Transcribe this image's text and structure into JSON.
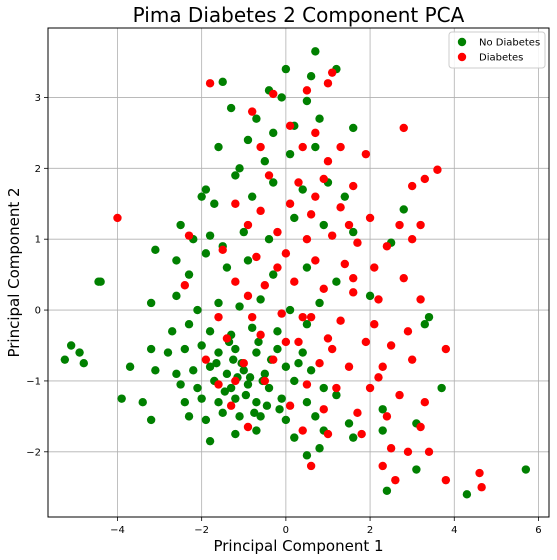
{
  "chart_data": {
    "type": "scatter",
    "title": "Pima Diabetes 2 Component PCA",
    "xlabel": "Principal Component 1",
    "ylabel": "Principal Component 2",
    "xlim": [
      -5.65,
      6.25
    ],
    "ylim": [
      -2.92,
      3.98
    ],
    "xticks": [
      -4,
      -2,
      0,
      2,
      4,
      6
    ],
    "yticks": [
      -2,
      -1,
      0,
      1,
      2,
      3
    ],
    "xtick_labels": [
      "−4",
      "−2",
      "0",
      "2",
      "4",
      "6"
    ],
    "ytick_labels": [
      "−2",
      "−1",
      "0",
      "1",
      "2",
      "3"
    ],
    "grid": true,
    "legend_position": "top-right",
    "series": [
      {
        "name": "No Diabetes",
        "color": "#008000",
        "points": [
          [
            0.7,
            3.65
          ],
          [
            -1.5,
            3.22
          ],
          [
            0.0,
            3.4
          ],
          [
            0.6,
            3.3
          ],
          [
            1.2,
            3.4
          ],
          [
            -0.4,
            3.1
          ],
          [
            -0.1,
            3.0
          ],
          [
            -1.3,
            2.85
          ],
          [
            0.5,
            2.95
          ],
          [
            -0.7,
            2.7
          ],
          [
            -0.9,
            2.4
          ],
          [
            -0.3,
            2.5
          ],
          [
            0.2,
            2.6
          ],
          [
            0.8,
            2.7
          ],
          [
            -1.6,
            2.3
          ],
          [
            -1.1,
            2.0
          ],
          [
            -0.5,
            2.1
          ],
          [
            0.1,
            2.2
          ],
          [
            0.7,
            2.3
          ],
          [
            1.6,
            2.57
          ],
          [
            -1.9,
            1.7
          ],
          [
            -2.0,
            1.6
          ],
          [
            -1.7,
            1.5
          ],
          [
            -1.2,
            1.9
          ],
          [
            -0.8,
            1.6
          ],
          [
            -0.3,
            1.8
          ],
          [
            0.4,
            1.7
          ],
          [
            1.0,
            1.8
          ],
          [
            1.4,
            1.6
          ],
          [
            2.8,
            1.42
          ],
          [
            -2.5,
            1.2
          ],
          [
            -2.2,
            1.0
          ],
          [
            -1.8,
            1.05
          ],
          [
            -1.5,
            0.9
          ],
          [
            -1.0,
            1.1
          ],
          [
            -0.4,
            1.0
          ],
          [
            0.2,
            1.3
          ],
          [
            0.9,
            1.2
          ],
          [
            1.6,
            1.1
          ],
          [
            2.5,
            0.95
          ],
          [
            -3.1,
            0.85
          ],
          [
            -2.6,
            0.7
          ],
          [
            -2.3,
            0.5
          ],
          [
            -1.9,
            0.8
          ],
          [
            -1.4,
            0.6
          ],
          [
            -0.9,
            0.7
          ],
          [
            -0.3,
            0.5
          ],
          [
            0.5,
            0.6
          ],
          [
            1.2,
            0.4
          ],
          [
            2.0,
            0.2
          ],
          [
            -4.4,
            0.4
          ],
          [
            -4.45,
            0.4
          ],
          [
            -3.2,
            0.1
          ],
          [
            -2.6,
            0.2
          ],
          [
            -2.1,
            0.0
          ],
          [
            -1.6,
            0.1
          ],
          [
            -1.1,
            0.05
          ],
          [
            -0.6,
            0.15
          ],
          [
            0.1,
            0.0
          ],
          [
            0.8,
            0.1
          ],
          [
            -2.7,
            -0.3
          ],
          [
            -2.3,
            -0.2
          ],
          [
            -1.8,
            -0.3
          ],
          [
            -1.3,
            -0.35
          ],
          [
            -0.8,
            -0.25
          ],
          [
            -0.2,
            -0.3
          ],
          [
            0.5,
            -0.2
          ],
          [
            3.4,
            -0.1
          ],
          [
            3.3,
            -0.2
          ],
          [
            -5.1,
            -0.5
          ],
          [
            -4.9,
            -0.6
          ],
          [
            -4.8,
            -0.75
          ],
          [
            -5.25,
            -0.7
          ],
          [
            -3.2,
            -0.55
          ],
          [
            -2.8,
            -0.6
          ],
          [
            -2.4,
            -0.55
          ],
          [
            -2.0,
            -0.5
          ],
          [
            -1.6,
            -0.6
          ],
          [
            -1.2,
            -0.55
          ],
          [
            -0.7,
            -0.6
          ],
          [
            -0.2,
            -0.55
          ],
          [
            0.4,
            -0.6
          ],
          [
            -3.7,
            -0.8
          ],
          [
            -3.1,
            -0.85
          ],
          [
            -2.6,
            -0.9
          ],
          [
            -2.2,
            -0.85
          ],
          [
            -1.8,
            -0.8
          ],
          [
            -1.4,
            -0.9
          ],
          [
            -1.0,
            -0.85
          ],
          [
            -0.5,
            -0.9
          ],
          [
            0.0,
            -0.8
          ],
          [
            0.6,
            -0.85
          ],
          [
            -2.5,
            -1.05
          ],
          [
            -2.1,
            -1.1
          ],
          [
            -1.7,
            -1.0
          ],
          [
            -1.3,
            -1.1
          ],
          [
            -0.9,
            -1.05
          ],
          [
            -0.4,
            -1.1
          ],
          [
            0.2,
            -1.0
          ],
          [
            0.9,
            -1.1
          ],
          [
            3.7,
            -1.1
          ],
          [
            -3.9,
            -1.25
          ],
          [
            -3.4,
            -1.3
          ],
          [
            -2.4,
            -1.3
          ],
          [
            -2.0,
            -1.25
          ],
          [
            -1.6,
            -1.3
          ],
          [
            -1.2,
            -1.25
          ],
          [
            -0.7,
            -1.3
          ],
          [
            -0.1,
            -1.25
          ],
          [
            0.5,
            -1.3
          ],
          [
            1.2,
            -1.2
          ],
          [
            2.3,
            -1.4
          ],
          [
            -3.2,
            -1.55
          ],
          [
            -2.3,
            -1.5
          ],
          [
            -1.9,
            -1.55
          ],
          [
            -1.5,
            -1.45
          ],
          [
            -1.1,
            -1.5
          ],
          [
            -0.6,
            -1.5
          ],
          [
            0.0,
            -1.55
          ],
          [
            0.7,
            -1.5
          ],
          [
            1.5,
            -1.6
          ],
          [
            3.1,
            -1.6
          ],
          [
            -1.8,
            -1.85
          ],
          [
            -1.2,
            -1.75
          ],
          [
            -0.7,
            -1.7
          ],
          [
            0.2,
            -1.8
          ],
          [
            0.9,
            -1.7
          ],
          [
            1.6,
            -1.8
          ],
          [
            2.3,
            -1.7
          ],
          [
            3.1,
            -2.25
          ],
          [
            0.5,
            -2.05
          ],
          [
            0.8,
            -1.95
          ],
          [
            2.4,
            -2.55
          ],
          [
            4.3,
            -2.6
          ],
          [
            5.7,
            -2.25
          ],
          [
            -1.05,
            -0.75
          ],
          [
            -0.85,
            -0.95
          ],
          [
            -1.25,
            -0.7
          ],
          [
            -0.55,
            -1.0
          ],
          [
            -1.45,
            -1.15
          ],
          [
            -0.95,
            -1.2
          ],
          [
            -0.35,
            -0.7
          ],
          [
            -1.15,
            -0.95
          ],
          [
            -0.65,
            -0.45
          ],
          [
            -0.15,
            -1.4
          ],
          [
            -1.65,
            -0.75
          ],
          [
            -0.45,
            -1.35
          ],
          [
            0.3,
            -0.75
          ],
          [
            -1.35,
            -0.45
          ],
          [
            -0.75,
            -1.45
          ]
        ]
      },
      {
        "name": "Diabetes",
        "color": "#ff0000",
        "points": [
          [
            -1.8,
            3.2
          ],
          [
            1.0,
            3.2
          ],
          [
            1.1,
            3.35
          ],
          [
            -0.3,
            3.05
          ],
          [
            0.5,
            3.1
          ],
          [
            -0.8,
            2.8
          ],
          [
            0.1,
            2.6
          ],
          [
            0.7,
            2.5
          ],
          [
            1.3,
            2.3
          ],
          [
            2.8,
            2.57
          ],
          [
            -0.6,
            2.3
          ],
          [
            0.4,
            2.3
          ],
          [
            1.0,
            2.1
          ],
          [
            1.9,
            2.2
          ],
          [
            3.6,
            1.98
          ],
          [
            -0.4,
            1.9
          ],
          [
            0.3,
            1.8
          ],
          [
            0.9,
            1.85
          ],
          [
            1.6,
            1.75
          ],
          [
            3.0,
            1.75
          ],
          [
            3.3,
            1.85
          ],
          [
            -4.0,
            1.3
          ],
          [
            -1.2,
            1.5
          ],
          [
            -0.6,
            1.4
          ],
          [
            0.1,
            1.5
          ],
          [
            0.6,
            1.35
          ],
          [
            1.3,
            1.45
          ],
          [
            2.0,
            1.3
          ],
          [
            2.7,
            1.2
          ],
          [
            3.2,
            1.2
          ],
          [
            -2.3,
            1.05
          ],
          [
            -0.9,
            1.2
          ],
          [
            -0.2,
            1.1
          ],
          [
            0.5,
            1.0
          ],
          [
            1.1,
            1.05
          ],
          [
            1.7,
            0.95
          ],
          [
            2.4,
            0.9
          ],
          [
            3.0,
            1.0
          ],
          [
            -1.5,
            0.85
          ],
          [
            -0.7,
            0.75
          ],
          [
            0.0,
            0.8
          ],
          [
            0.7,
            0.7
          ],
          [
            1.4,
            0.65
          ],
          [
            2.1,
            0.6
          ],
          [
            2.8,
            0.45
          ],
          [
            -2.4,
            0.35
          ],
          [
            -1.2,
            0.4
          ],
          [
            -0.5,
            0.35
          ],
          [
            0.2,
            0.4
          ],
          [
            0.9,
            0.3
          ],
          [
            1.6,
            0.25
          ],
          [
            2.2,
            0.15
          ],
          [
            3.2,
            0.15
          ],
          [
            -1.6,
            -0.1
          ],
          [
            -0.8,
            -0.1
          ],
          [
            -0.1,
            -0.05
          ],
          [
            0.6,
            -0.1
          ],
          [
            1.3,
            -0.15
          ],
          [
            2.1,
            -0.2
          ],
          [
            2.9,
            -0.3
          ],
          [
            -1.4,
            -0.4
          ],
          [
            -0.6,
            -0.35
          ],
          [
            0.3,
            -0.45
          ],
          [
            1.0,
            -0.4
          ],
          [
            1.9,
            -0.45
          ],
          [
            2.5,
            -0.5
          ],
          [
            3.8,
            -0.55
          ],
          [
            -1.9,
            -0.7
          ],
          [
            -1.0,
            -0.75
          ],
          [
            -0.3,
            -0.7
          ],
          [
            0.8,
            -0.75
          ],
          [
            1.5,
            -0.8
          ],
          [
            2.3,
            -0.8
          ],
          [
            3.0,
            -0.7
          ],
          [
            -1.6,
            -1.05
          ],
          [
            -0.5,
            -1.0
          ],
          [
            0.5,
            -1.05
          ],
          [
            1.2,
            -1.1
          ],
          [
            2.0,
            -1.1
          ],
          [
            2.7,
            -1.2
          ],
          [
            3.3,
            -1.3
          ],
          [
            -1.3,
            -1.35
          ],
          [
            0.1,
            -1.35
          ],
          [
            0.9,
            -1.4
          ],
          [
            1.7,
            -1.45
          ],
          [
            2.4,
            -1.5
          ],
          [
            3.2,
            -1.65
          ],
          [
            -0.9,
            -1.65
          ],
          [
            0.4,
            -1.7
          ],
          [
            1.0,
            -1.75
          ],
          [
            1.8,
            -1.75
          ],
          [
            2.5,
            -1.95
          ],
          [
            2.9,
            -2.0
          ],
          [
            3.4,
            -2.0
          ],
          [
            0.6,
            -2.2
          ],
          [
            2.3,
            -2.2
          ],
          [
            2.6,
            -2.4
          ],
          [
            3.8,
            -2.4
          ],
          [
            4.6,
            -2.3
          ],
          [
            4.65,
            -2.5
          ],
          [
            -1.2,
            -1.0
          ],
          [
            0.0,
            -0.45
          ],
          [
            1.1,
            -0.55
          ],
          [
            1.6,
            0.45
          ],
          [
            -0.2,
            0.6
          ],
          [
            0.7,
            1.6
          ],
          [
            1.5,
            1.2
          ],
          [
            2.2,
            -0.95
          ],
          [
            0.4,
            -0.1
          ],
          [
            -0.9,
            0.2
          ]
        ]
      }
    ]
  }
}
